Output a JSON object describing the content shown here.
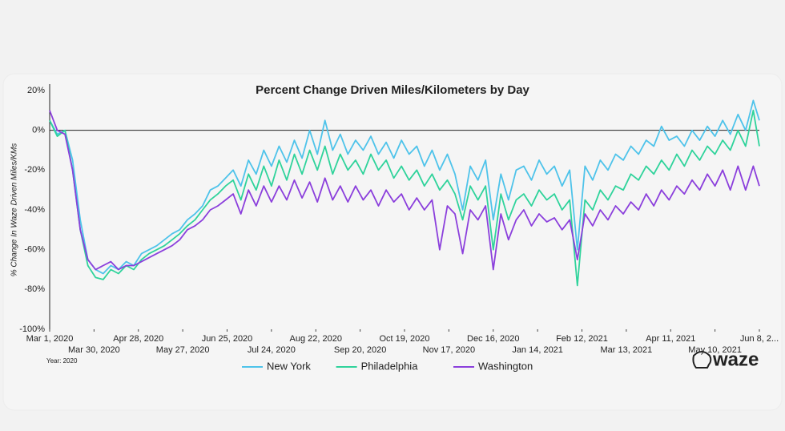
{
  "chart_data": {
    "type": "line",
    "title": "Percent Change Driven Miles/Kilometers by Day",
    "y_label": "% Change In Waze Driven Miles/KMs",
    "note": "Year: 2020",
    "logo": "waze",
    "x": [
      "2020-03-01",
      "2020-03-06",
      "2020-03-11",
      "2020-03-16",
      "2020-03-21",
      "2020-03-26",
      "2020-03-31",
      "2020-04-05",
      "2020-04-10",
      "2020-04-15",
      "2020-04-20",
      "2020-04-25",
      "2020-04-30",
      "2020-05-05",
      "2020-05-10",
      "2020-05-15",
      "2020-05-20",
      "2020-05-25",
      "2020-05-30",
      "2020-06-04",
      "2020-06-09",
      "2020-06-14",
      "2020-06-19",
      "2020-06-24",
      "2020-06-29",
      "2020-07-04",
      "2020-07-09",
      "2020-07-14",
      "2020-07-19",
      "2020-07-24",
      "2020-07-29",
      "2020-08-03",
      "2020-08-08",
      "2020-08-13",
      "2020-08-18",
      "2020-08-23",
      "2020-08-28",
      "2020-09-02",
      "2020-09-07",
      "2020-09-12",
      "2020-09-17",
      "2020-09-22",
      "2020-09-27",
      "2020-10-02",
      "2020-10-07",
      "2020-10-12",
      "2020-10-17",
      "2020-10-22",
      "2020-10-27",
      "2020-11-01",
      "2020-11-06",
      "2020-11-11",
      "2020-11-16",
      "2020-11-21",
      "2020-11-26",
      "2020-12-01",
      "2020-12-06",
      "2020-12-11",
      "2020-12-16",
      "2020-12-21",
      "2020-12-26",
      "2020-12-31",
      "2021-01-05",
      "2021-01-10",
      "2021-01-15",
      "2021-01-20",
      "2021-01-25",
      "2021-01-30",
      "2021-02-04",
      "2021-02-09",
      "2021-02-14",
      "2021-02-19",
      "2021-02-24",
      "2021-03-01",
      "2021-03-06",
      "2021-03-11",
      "2021-03-16",
      "2021-03-21",
      "2021-03-26",
      "2021-03-31",
      "2021-04-05",
      "2021-04-10",
      "2021-04-15",
      "2021-04-20",
      "2021-04-25",
      "2021-04-30",
      "2021-05-05",
      "2021-05-10",
      "2021-05-15",
      "2021-05-20",
      "2021-05-25",
      "2021-05-30",
      "2021-06-04",
      "2021-06-08"
    ],
    "series": [
      {
        "name": "New York",
        "color": "#4ec3ea",
        "values": [
          5,
          -2,
          0,
          -15,
          -45,
          -65,
          -70,
          -72,
          -68,
          -70,
          -66,
          -68,
          -62,
          -60,
          -58,
          -55,
          -52,
          -50,
          -45,
          -42,
          -38,
          -30,
          -28,
          -24,
          -20,
          -28,
          -15,
          -22,
          -10,
          -18,
          -8,
          -16,
          -5,
          -14,
          0,
          -12,
          5,
          -10,
          -2,
          -12,
          -5,
          -10,
          -3,
          -12,
          -6,
          -14,
          -5,
          -12,
          -8,
          -18,
          -10,
          -20,
          -12,
          -22,
          -40,
          -18,
          -25,
          -15,
          -45,
          -22,
          -35,
          -20,
          -18,
          -25,
          -15,
          -22,
          -18,
          -28,
          -20,
          -60,
          -18,
          -25,
          -15,
          -20,
          -12,
          -15,
          -8,
          -12,
          -5,
          -8,
          2,
          -5,
          -3,
          -8,
          0,
          -5,
          2,
          -3,
          5,
          -2,
          8,
          0,
          15,
          5
        ]
      },
      {
        "name": "Philadelphia",
        "color": "#2fd39b",
        "values": [
          5,
          -3,
          0,
          -20,
          -50,
          -68,
          -74,
          -75,
          -70,
          -72,
          -68,
          -70,
          -65,
          -62,
          -60,
          -58,
          -55,
          -52,
          -48,
          -45,
          -40,
          -35,
          -32,
          -28,
          -25,
          -35,
          -22,
          -30,
          -18,
          -28,
          -15,
          -25,
          -12,
          -22,
          -10,
          -20,
          -8,
          -22,
          -12,
          -20,
          -15,
          -22,
          -12,
          -20,
          -15,
          -24,
          -18,
          -25,
          -20,
          -28,
          -22,
          -30,
          -25,
          -32,
          -45,
          -28,
          -35,
          -28,
          -60,
          -32,
          -45,
          -35,
          -32,
          -38,
          -30,
          -35,
          -32,
          -40,
          -35,
          -78,
          -35,
          -40,
          -30,
          -35,
          -28,
          -30,
          -22,
          -25,
          -18,
          -22,
          -15,
          -20,
          -12,
          -18,
          -10,
          -15,
          -8,
          -12,
          -5,
          -10,
          0,
          -8,
          10,
          -8
        ]
      },
      {
        "name": "Washington",
        "color": "#8b3fdc",
        "values": [
          10,
          0,
          -2,
          -20,
          -50,
          -65,
          -70,
          -68,
          -66,
          -70,
          -68,
          -68,
          -66,
          -64,
          -62,
          -60,
          -58,
          -55,
          -50,
          -48,
          -45,
          -40,
          -38,
          -35,
          -32,
          -42,
          -30,
          -38,
          -28,
          -36,
          -28,
          -35,
          -25,
          -34,
          -26,
          -36,
          -24,
          -35,
          -28,
          -36,
          -28,
          -35,
          -30,
          -38,
          -30,
          -36,
          -32,
          -40,
          -34,
          -40,
          -35,
          -60,
          -38,
          -42,
          -62,
          -40,
          -45,
          -38,
          -70,
          -42,
          -55,
          -45,
          -40,
          -48,
          -42,
          -46,
          -44,
          -50,
          -45,
          -65,
          -42,
          -48,
          -40,
          -45,
          -38,
          -42,
          -36,
          -40,
          -32,
          -38,
          -30,
          -35,
          -28,
          -32,
          -25,
          -30,
          -22,
          -28,
          -20,
          -30,
          -18,
          -30,
          -18,
          -28
        ]
      }
    ],
    "xlim": [
      "2020-03-01",
      "2021-06-08"
    ],
    "xticks": [
      {
        "value": "2020-03-01",
        "label": "Mar 1, 2020"
      },
      {
        "value": "2020-03-30",
        "label": "Mar 30, 2020"
      },
      {
        "value": "2020-04-28",
        "label": "Apr 28, 2020"
      },
      {
        "value": "2020-05-27",
        "label": "May 27, 2020"
      },
      {
        "value": "2020-06-25",
        "label": "Jun 25, 2020"
      },
      {
        "value": "2020-07-24",
        "label": "Jul 24, 2020"
      },
      {
        "value": "2020-08-22",
        "label": "Aug 22, 2020"
      },
      {
        "value": "2020-09-20",
        "label": "Sep 20, 2020"
      },
      {
        "value": "2020-10-19",
        "label": "Oct 19, 2020"
      },
      {
        "value": "2020-11-17",
        "label": "Nov 17, 2020"
      },
      {
        "value": "2020-12-16",
        "label": "Dec 16, 2020"
      },
      {
        "value": "2021-01-14",
        "label": "Jan 14, 2021"
      },
      {
        "value": "2021-02-12",
        "label": "Feb 12, 2021"
      },
      {
        "value": "2021-03-13",
        "label": "Mar 13, 2021"
      },
      {
        "value": "2021-04-11",
        "label": "Apr 11, 2021"
      },
      {
        "value": "2021-05-10",
        "label": "May 10, 2021"
      },
      {
        "value": "2021-06-08",
        "label": "Jun 8, 2..."
      }
    ],
    "ylim": [
      -100,
      20
    ],
    "yticks": [
      {
        "value": 20,
        "label": "20%"
      },
      {
        "value": 0,
        "label": "0%"
      },
      {
        "value": -20,
        "label": "-20%"
      },
      {
        "value": -40,
        "label": "-40%"
      },
      {
        "value": -60,
        "label": "-60%"
      },
      {
        "value": -80,
        "label": "-80%"
      },
      {
        "value": -100,
        "label": "-100%"
      }
    ],
    "legend": "bottom"
  }
}
